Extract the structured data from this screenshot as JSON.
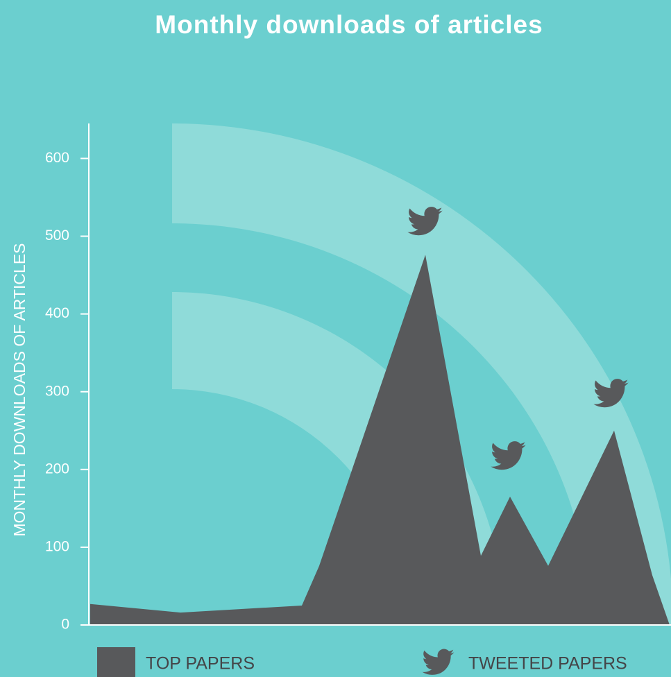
{
  "chart_data": {
    "type": "area",
    "title": "Monthly downloads of articles",
    "y_label": "MONTHLY DOWNLOADS OF ARTICLES",
    "categories": [
      null,
      null,
      null,
      null,
      null,
      null,
      null,
      null,
      null,
      null,
      null
    ],
    "series": [
      {
        "name": "TOP PAPERS",
        "color": "#58595b",
        "values": [
          27,
          16,
          25,
          76,
          476,
          89,
          165,
          76,
          250,
          64,
          0
        ]
      }
    ],
    "marker_legend": "TWEETED PAPERS",
    "ylim": [
      0,
      645
    ],
    "yticks": [
      0,
      100,
      200,
      300,
      400,
      500,
      600
    ],
    "background": "#6bcfcf"
  }
}
